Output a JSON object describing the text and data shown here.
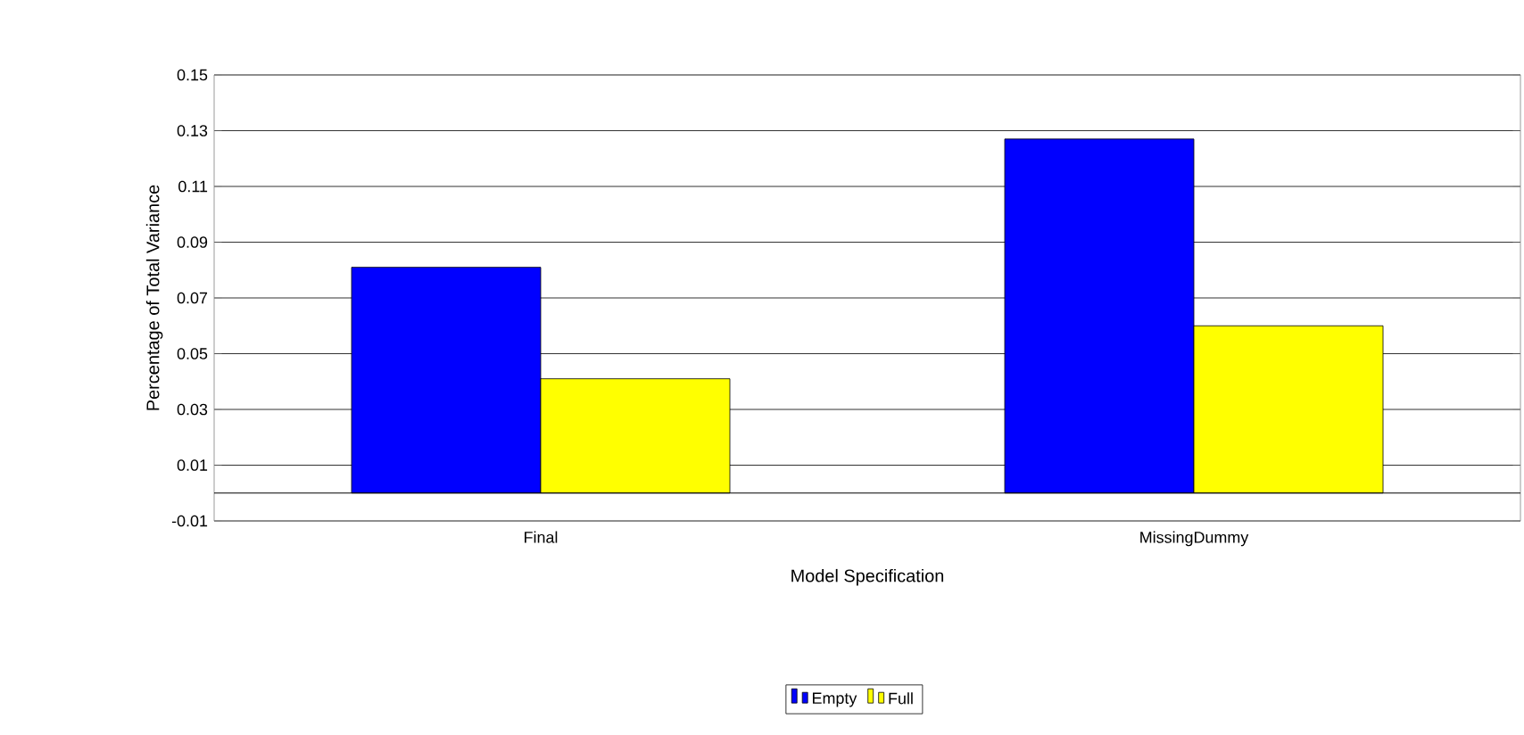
{
  "chart_data": {
    "type": "bar",
    "xlabel": "Model Specification",
    "ylabel": "Percentage of Total Variance",
    "categories": [
      "Final",
      "MissingDummy"
    ],
    "series": [
      {
        "name": "Empty",
        "color": "#0000ff",
        "values": [
          0.081,
          0.127
        ]
      },
      {
        "name": "Full",
        "color": "#ffff00",
        "values": [
          0.041,
          0.06
        ]
      }
    ],
    "ylim": [
      -0.01,
      0.15
    ],
    "yticks": [
      -0.01,
      0.01,
      0.03,
      0.05,
      0.07,
      0.09,
      0.11,
      0.13,
      0.15
    ],
    "grid": "y",
    "legend": "bottom"
  }
}
